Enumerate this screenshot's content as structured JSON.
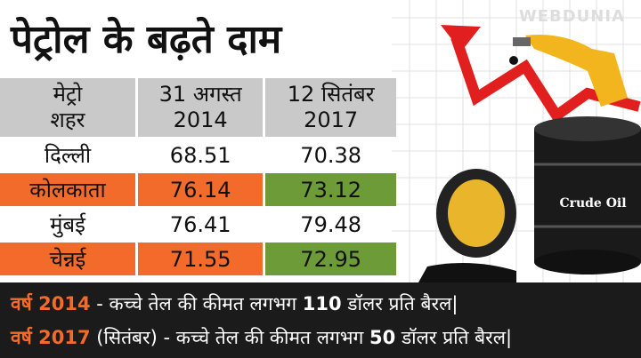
{
  "title": "पेट्रोल के बढ़ते दाम",
  "watermark": "WEBDUNIA",
  "image_label": "Crude Oil",
  "table": {
    "header": [
      [
        "मेट्रो",
        "शहर"
      ],
      [
        "31 अगस्त",
        "2014"
      ],
      [
        "12 सितंबर",
        "2017"
      ]
    ],
    "rows": [
      [
        "दिल्ली",
        68.51,
        70.38
      ],
      [
        "कोलकाता",
        76.14,
        73.12
      ],
      [
        "मुंबई",
        76.41,
        79.48
      ],
      [
        "चेन्नई",
        71.55,
        72.95
      ]
    ]
  },
  "footer": [
    {
      "year": "वर्ष 2014",
      "text1": " - कच्चे तेल की कीमत लगभग ",
      "amount": 110,
      "text2": " डॉलर प्रति बैरल|"
    },
    {
      "year": "वर्ष 2017",
      "text1": " (सितंबर) - कच्चे तेल की कीमत लगभग ",
      "amount": 50,
      "text2": " डॉलर प्रति बैरल|"
    }
  ]
}
